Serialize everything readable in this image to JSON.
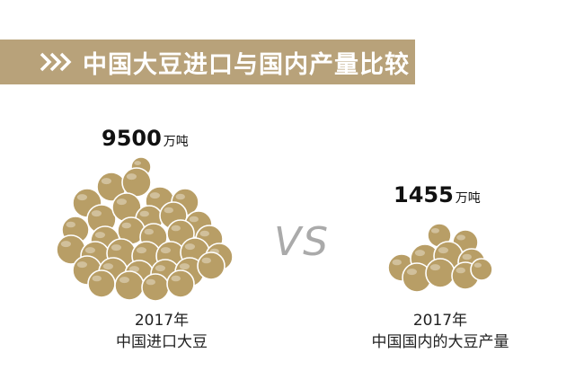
{
  "header": {
    "title": "中国大豆进口与国内产量比较",
    "band_color": "#b8a27a"
  },
  "chart_data": {
    "type": "bar",
    "title": "中国大豆进口与国内产量比较",
    "categories": [
      "中国进口大豆",
      "中国国内的大豆产量"
    ],
    "series": [
      {
        "values": [
          9500,
          1455
        ]
      }
    ],
    "unit": "万吨",
    "year": "2017年",
    "separator": "VS",
    "bean_color": "#b89e66"
  },
  "left": {
    "value": "9500",
    "unit": "万吨",
    "year": "2017年",
    "label": "中国进口大豆"
  },
  "right": {
    "value": "1455",
    "unit": "万吨",
    "year": "2017年",
    "label": "中国国内的大豆产量"
  },
  "vs_label": "VS"
}
